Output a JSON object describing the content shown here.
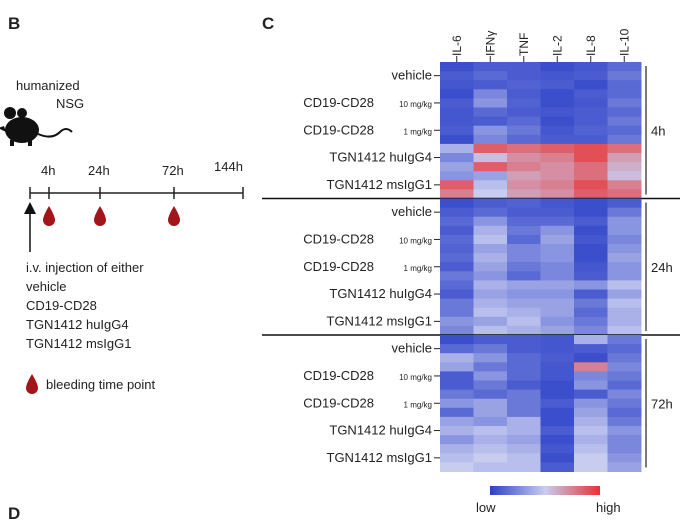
{
  "panels": {
    "b": "B",
    "c": "C",
    "d": "D"
  },
  "timeline": {
    "mouse_label_1": "humanized",
    "mouse_label_2": "NSG",
    "timepoints": [
      "4h",
      "24h",
      "72h",
      "144h"
    ],
    "injection_text": [
      "i.v. injection of either",
      "vehicle",
      "CD19-CD28",
      "TGN1412 huIgG4",
      "TGN1412 msIgG1"
    ],
    "legend_label": "bleeding time point",
    "colors": {
      "drop": "#a0161b",
      "line": "#222222"
    }
  },
  "chart_data": {
    "type": "heatmap",
    "title": "",
    "columns": [
      "IL-6",
      "IFNγ",
      "TNF",
      "IL-2",
      "IL-8",
      "IL-10"
    ],
    "groups": [
      {
        "label": "4h",
        "rows": [
          {
            "label": "vehicle",
            "sub": "",
            "values": [
              [
                0.05,
                0.1,
                0.1,
                0.05,
                0.08,
                0.15
              ],
              [
                0.1,
                0.15,
                0.1,
                0.08,
                0.1,
                0.2
              ],
              [
                0.08,
                0.1,
                0.12,
                0.1,
                0.05,
                0.15
              ]
            ]
          },
          {
            "label": "CD19-CD28",
            "sub": "10 mg/kg",
            "values": [
              [
                0.05,
                0.25,
                0.1,
                0.05,
                0.1,
                0.15
              ],
              [
                0.1,
                0.3,
                0.12,
                0.05,
                0.08,
                0.2
              ],
              [
                0.08,
                0.15,
                0.1,
                0.08,
                0.1,
                0.15
              ]
            ]
          },
          {
            "label": "CD19-CD28",
            "sub": "1 mg/kg",
            "values": [
              [
                0.08,
                0.1,
                0.15,
                0.05,
                0.1,
                0.2
              ],
              [
                0.1,
                0.3,
                0.2,
                0.08,
                0.12,
                0.15
              ],
              [
                0.05,
                0.25,
                0.15,
                0.1,
                0.1,
                0.2
              ]
            ]
          },
          {
            "label": "TGN1412 huIgG4",
            "sub": "",
            "values": [
              [
                0.4,
                0.85,
                0.8,
                0.85,
                0.9,
                0.8
              ],
              [
                0.25,
                0.55,
                0.7,
                0.75,
                0.9,
                0.65
              ],
              [
                0.35,
                0.85,
                0.75,
                0.7,
                0.8,
                0.6
              ]
            ]
          },
          {
            "label": "TGN1412 msIgG1",
            "sub": "",
            "values": [
              [
                0.3,
                0.35,
                0.65,
                0.7,
                0.8,
                0.55
              ],
              [
                0.85,
                0.45,
                0.7,
                0.75,
                0.9,
                0.75
              ],
              [
                0.75,
                0.5,
                0.65,
                0.7,
                0.85,
                0.8
              ]
            ]
          }
        ]
      },
      {
        "label": "24h",
        "rows": [
          {
            "label": "vehicle",
            "sub": "",
            "values": [
              [
                0.05,
                0.1,
                0.12,
                0.08,
                0.05,
                0.1
              ],
              [
                0.1,
                0.15,
                0.1,
                0.1,
                0.05,
                0.2
              ],
              [
                0.15,
                0.3,
                0.15,
                0.15,
                0.1,
                0.3
              ]
            ]
          },
          {
            "label": "CD19-CD28",
            "sub": "10 mg/kg",
            "values": [
              [
                0.1,
                0.4,
                0.2,
                0.3,
                0.05,
                0.3
              ],
              [
                0.15,
                0.45,
                0.15,
                0.35,
                0.08,
                0.25
              ],
              [
                0.12,
                0.35,
                0.25,
                0.3,
                0.05,
                0.3
              ]
            ]
          },
          {
            "label": "CD19-CD28",
            "sub": "1 mg/kg",
            "values": [
              [
                0.15,
                0.4,
                0.25,
                0.3,
                0.05,
                0.35
              ],
              [
                0.1,
                0.35,
                0.2,
                0.25,
                0.08,
                0.3
              ],
              [
                0.2,
                0.3,
                0.15,
                0.25,
                0.1,
                0.3
              ]
            ]
          },
          {
            "label": "TGN1412 huIgG4",
            "sub": "",
            "values": [
              [
                0.15,
                0.4,
                0.35,
                0.35,
                0.3,
                0.45
              ],
              [
                0.1,
                0.35,
                0.3,
                0.3,
                0.1,
                0.35
              ],
              [
                0.2,
                0.4,
                0.35,
                0.35,
                0.2,
                0.45
              ]
            ]
          },
          {
            "label": "TGN1412 msIgG1",
            "sub": "",
            "values": [
              [
                0.2,
                0.45,
                0.4,
                0.35,
                0.15,
                0.4
              ],
              [
                0.3,
                0.35,
                0.45,
                0.3,
                0.2,
                0.4
              ],
              [
                0.25,
                0.45,
                0.4,
                0.35,
                0.25,
                0.45
              ]
            ]
          }
        ]
      },
      {
        "label": "72h",
        "rows": [
          {
            "label": "vehicle",
            "sub": "",
            "values": [
              [
                0.05,
                0.1,
                0.1,
                0.08,
                0.4,
                0.2
              ],
              [
                0.15,
                0.2,
                0.1,
                0.08,
                0.1,
                0.15
              ],
              [
                0.4,
                0.3,
                0.15,
                0.1,
                0.05,
                0.2
              ]
            ]
          },
          {
            "label": "CD19-CD28",
            "sub": "10 mg/kg",
            "values": [
              [
                0.35,
                0.2,
                0.15,
                0.08,
                0.75,
                0.25
              ],
              [
                0.1,
                0.3,
                0.15,
                0.08,
                0.25,
                0.2
              ],
              [
                0.1,
                0.2,
                0.1,
                0.05,
                0.3,
                0.15
              ]
            ]
          },
          {
            "label": "CD19-CD28",
            "sub": "1 mg/kg",
            "values": [
              [
                0.2,
                0.15,
                0.2,
                0.05,
                0.1,
                0.25
              ],
              [
                0.3,
                0.35,
                0.2,
                0.1,
                0.3,
                0.2
              ],
              [
                0.15,
                0.35,
                0.2,
                0.05,
                0.35,
                0.15
              ]
            ]
          },
          {
            "label": "TGN1412 huIgG4",
            "sub": "",
            "values": [
              [
                0.35,
                0.3,
                0.4,
                0.05,
                0.4,
                0.2
              ],
              [
                0.4,
                0.45,
                0.4,
                0.1,
                0.45,
                0.3
              ],
              [
                0.3,
                0.4,
                0.35,
                0.05,
                0.4,
                0.25
              ]
            ]
          },
          {
            "label": "TGN1412 msIgG1",
            "sub": "",
            "values": [
              [
                0.4,
                0.45,
                0.4,
                0.08,
                0.45,
                0.25
              ],
              [
                0.45,
                0.5,
                0.45,
                0.05,
                0.5,
                0.3
              ],
              [
                0.5,
                0.45,
                0.45,
                0.1,
                0.5,
                0.35
              ]
            ]
          }
        ]
      }
    ],
    "legend": {
      "low": "low",
      "high": "high",
      "colors": [
        "#2b40c8",
        "#c8cdf0",
        "#e83030"
      ]
    }
  }
}
